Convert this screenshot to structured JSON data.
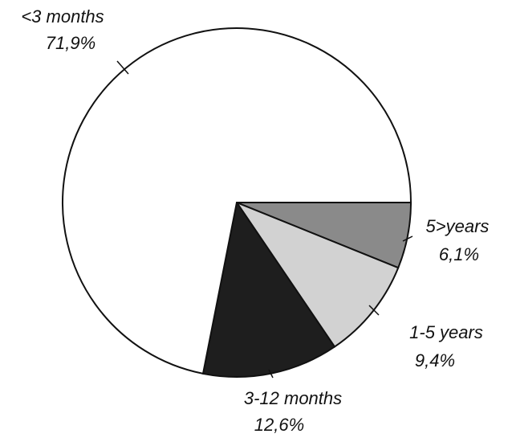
{
  "chart_data": {
    "type": "pie",
    "categories": [
      "5>years",
      "1-5 years",
      "3-12 months",
      "<3 months"
    ],
    "values": [
      6.1,
      9.4,
      12.6,
      71.9
    ],
    "value_labels": [
      "6,1%",
      "9,4%",
      "12,6%",
      "71,9%"
    ],
    "colors": [
      "#8a8a8a",
      "#d2d2d2",
      "#1e1e1e",
      "#ffffff"
    ]
  }
}
